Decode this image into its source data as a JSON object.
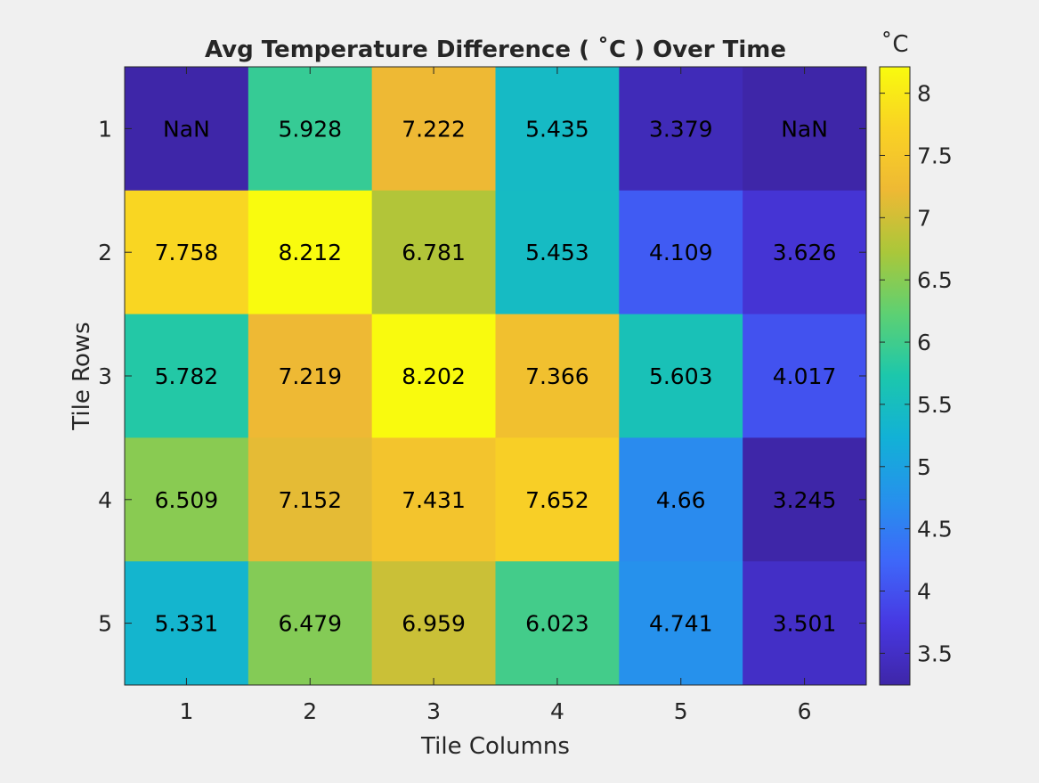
{
  "chart_data": {
    "type": "heatmap",
    "title": "Avg Temperature Difference ( ˚C ) Over Time",
    "xlabel": "Tile Columns",
    "ylabel": "Tile Rows",
    "x_categories": [
      "1",
      "2",
      "3",
      "4",
      "5",
      "6"
    ],
    "y_categories": [
      "1",
      "2",
      "3",
      "4",
      "5"
    ],
    "values": [
      [
        null,
        5.928,
        7.222,
        5.435,
        3.379,
        null
      ],
      [
        7.758,
        8.212,
        6.781,
        5.453,
        4.109,
        3.626
      ],
      [
        5.782,
        7.219,
        8.202,
        7.366,
        5.603,
        4.017
      ],
      [
        6.509,
        7.152,
        7.431,
        7.652,
        4.66,
        3.245
      ],
      [
        5.331,
        6.479,
        6.959,
        6.023,
        4.741,
        3.501
      ]
    ],
    "cell_labels": [
      [
        "NaN",
        "5.928",
        "7.222",
        "5.435",
        "3.379",
        "NaN"
      ],
      [
        "7.758",
        "8.212",
        "6.781",
        "5.453",
        "4.109",
        "3.626"
      ],
      [
        "5.782",
        "7.219",
        "8.202",
        "7.366",
        "5.603",
        "4.017"
      ],
      [
        "6.509",
        "7.152",
        "7.431",
        "7.652",
        "4.66",
        "3.245"
      ],
      [
        "5.331",
        "6.479",
        "6.959",
        "6.023",
        "4.741",
        "3.501"
      ]
    ],
    "colorbar": {
      "label": "˚C",
      "limits": [
        3.245,
        8.212
      ],
      "ticks": [
        3.5,
        4,
        4.5,
        5,
        5.5,
        6,
        6.5,
        7,
        7.5,
        8
      ],
      "tick_labels": [
        "3.5",
        "4",
        "4.5",
        "5",
        "5.5",
        "6",
        "6.5",
        "7",
        "7.5",
        "8"
      ]
    },
    "colormap": "parula",
    "nan_color": "#3e26a8",
    "grid": false
  }
}
